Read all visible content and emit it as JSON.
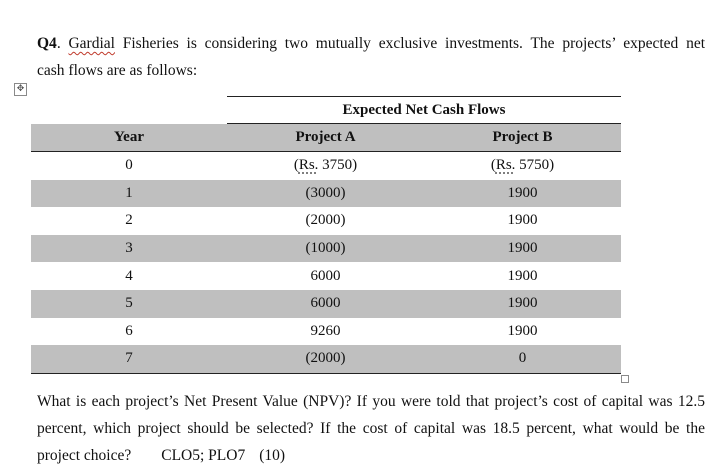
{
  "question": {
    "number": "Q4",
    "company": "Gardial",
    "intro_line1_rest": " Fisheries is considering two mutually exclusive investments. The projects’ expected net",
    "intro_line2": "cash flows are as follows:"
  },
  "table": {
    "group_header": "Expected Net Cash Flows",
    "columns": [
      "Year",
      "Project A",
      "Project B"
    ],
    "currency_prefix": "Rs.",
    "rows": [
      {
        "year": "0",
        "a": "(Rs. 3750)",
        "b": "(Rs. 5750)"
      },
      {
        "year": "1",
        "a": "(3000)",
        "b": "1900"
      },
      {
        "year": "2",
        "a": "(2000)",
        "b": "1900"
      },
      {
        "year": "3",
        "a": "(1000)",
        "b": "1900"
      },
      {
        "year": "4",
        "a": "6000",
        "b": "1900"
      },
      {
        "year": "5",
        "a": "6000",
        "b": "1900"
      },
      {
        "year": "6",
        "a": "9260",
        "b": "1900"
      },
      {
        "year": "7",
        "a": "(2000)",
        "b": "0"
      }
    ],
    "row0": {
      "a_open": "(",
      "a_rs": "Rs.",
      "a_rest": " 3750)",
      "b_open": "(",
      "b_rs": "Rs.",
      "b_rest": " 5750)"
    }
  },
  "body": {
    "line1": "What is each project’s Net Present Value (NPV)? If you were told that project’s cost of capital was 12.5",
    "line2": "percent, which project should be selected? If the cost of capital was 18.5 percent, what would be the",
    "line3": "project choice?",
    "clo": "CLO5; PLO7",
    "marks": "(10)"
  },
  "icons": {
    "move_handle": "move-arrows-icon",
    "resize_handle": "table-resize-handle"
  }
}
